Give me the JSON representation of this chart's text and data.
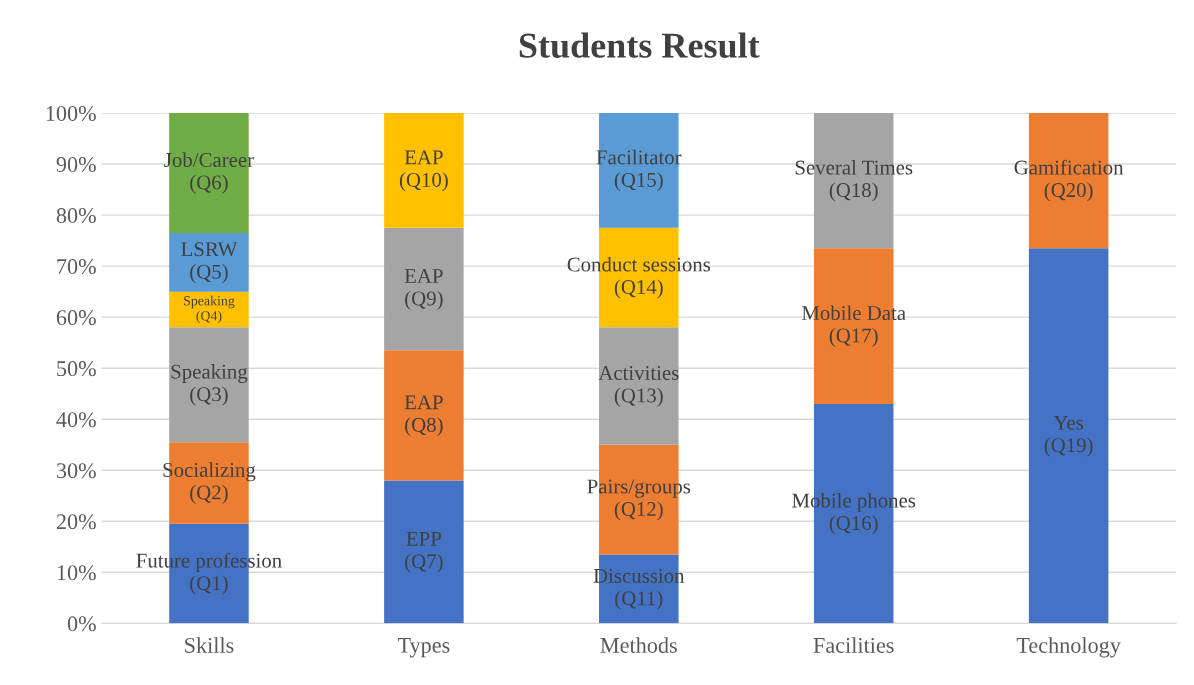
{
  "chart_data": {
    "type": "bar",
    "title": "Students Result",
    "stacked": true,
    "categories": [
      "Skills",
      "Types",
      "Methods",
      "Facilities",
      "Technology"
    ],
    "series": [
      {
        "color": "#4472c4",
        "values": [
          19.5,
          28,
          13.5,
          43,
          73.5
        ],
        "value_labels": [
          "Future profession\n(Q1)",
          "EPP\n(Q7)",
          "Discussion\n(Q11)",
          "Mobile phones\n(Q16)",
          "Yes\n(Q19)"
        ]
      },
      {
        "color": "#ed7d31",
        "values": [
          16,
          25.5,
          21.5,
          30.5,
          26.5
        ],
        "value_labels": [
          "Socializing\n(Q2)",
          "EAP\n(Q8)",
          "Pairs/groups\n(Q12)",
          "Mobile Data\n(Q17)",
          "Gamification\n(Q20)"
        ]
      },
      {
        "color": "#a5a5a5",
        "values": [
          22.5,
          24,
          23,
          26.5,
          null
        ],
        "value_labels": [
          "Speaking\n(Q3)",
          "EAP\n(Q9)",
          "Activities\n(Q13)",
          "Several Times\n(Q18)",
          null
        ]
      },
      {
        "color": "#ffc000",
        "values": [
          7,
          22.5,
          19.5,
          null,
          null
        ],
        "value_labels": [
          "Speaking\n(Q4)",
          "EAP\n(Q10)",
          "Conduct sessions\n(Q14)",
          null,
          null
        ]
      },
      {
        "color": "#5b9bd5",
        "values": [
          11.5,
          null,
          22.5,
          null,
          null
        ],
        "value_labels": [
          "LSRW\n(Q5)",
          null,
          "Facilitator\n(Q15)",
          null,
          null
        ]
      },
      {
        "color": "#70ad47",
        "values": [
          23.5,
          null,
          null,
          null,
          null
        ],
        "value_labels": [
          "Job/Career\n(Q6)",
          null,
          null,
          null,
          null
        ]
      }
    ],
    "ylim": [
      0,
      100
    ],
    "yticks": [
      {
        "value": 0,
        "label": "0%"
      },
      {
        "value": 10,
        "label": "10%"
      },
      {
        "value": 20,
        "label": "20%"
      },
      {
        "value": 30,
        "label": "30%"
      },
      {
        "value": 40,
        "label": "40%"
      },
      {
        "value": 50,
        "label": "50%"
      },
      {
        "value": 60,
        "label": "60%"
      },
      {
        "value": 70,
        "label": "70%"
      },
      {
        "value": 80,
        "label": "80%"
      },
      {
        "value": 90,
        "label": "90%"
      },
      {
        "value": 100,
        "label": "100%"
      }
    ],
    "grid": "y",
    "legend": false
  }
}
